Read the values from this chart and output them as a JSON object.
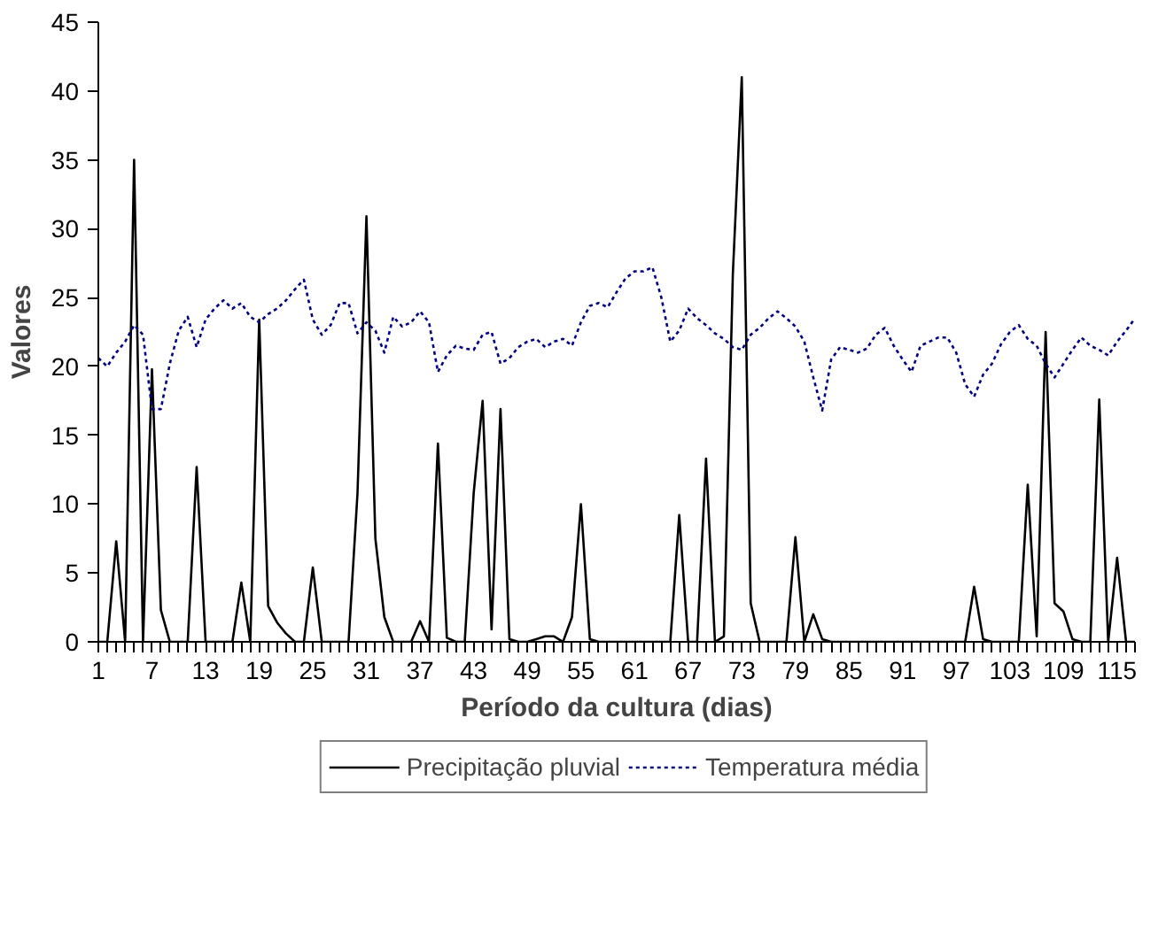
{
  "chart_data": {
    "type": "line",
    "xlabel": "Período da cultura (dias)",
    "ylabel": "Valores",
    "categories": [
      "1",
      null,
      null,
      null,
      null,
      null,
      "7",
      null,
      null,
      null,
      null,
      null,
      "13",
      null,
      null,
      null,
      null,
      null,
      "19",
      null,
      null,
      null,
      null,
      null,
      "25",
      null,
      null,
      null,
      null,
      null,
      "31",
      null,
      null,
      null,
      null,
      null,
      "37",
      null,
      null,
      null,
      null,
      null,
      "43",
      null,
      null,
      null,
      null,
      null,
      "49",
      null,
      null,
      null,
      null,
      null,
      "55",
      null,
      null,
      null,
      null,
      null,
      "61",
      null,
      null,
      null,
      null,
      null,
      "67",
      null,
      null,
      null,
      null,
      null,
      "73",
      null,
      null,
      null,
      null,
      null,
      "79",
      null,
      null,
      null,
      null,
      null,
      "85",
      null,
      null,
      null,
      null,
      null,
      "91",
      null,
      null,
      null,
      null,
      null,
      "97",
      null,
      null,
      null,
      null,
      null,
      "103",
      null,
      null,
      null,
      null,
      null,
      "109",
      null,
      null,
      null,
      null,
      null,
      "115",
      null,
      null
    ],
    "series": [
      {
        "name": "Precipitação pluvial",
        "color": "#000000",
        "line_style": "solid",
        "values": [
          0,
          0,
          7.3,
          0,
          35,
          0,
          19.8,
          2.3,
          0,
          0,
          0,
          12.7,
          0,
          0,
          0,
          0,
          4.3,
          0,
          23.4,
          2.6,
          1.4,
          0.6,
          0,
          0,
          5.4,
          0,
          0,
          0,
          0,
          10.8,
          30.9,
          7.5,
          1.8,
          0,
          0,
          0,
          1.5,
          0,
          14.4,
          0.3,
          0,
          0,
          10.8,
          17.5,
          0.9,
          16.9,
          0.2,
          0,
          0,
          0.2,
          0.4,
          0.4,
          0,
          1.8,
          10,
          0.2,
          0,
          0,
          0,
          0,
          0,
          0,
          0,
          0,
          0,
          9.2,
          0,
          0,
          13.3,
          0,
          0.4,
          26.7,
          41,
          2.8,
          0,
          0,
          0,
          0,
          7.6,
          0,
          2,
          0.2,
          0,
          0,
          0,
          0,
          0,
          0,
          0,
          0,
          0,
          0,
          0,
          0,
          0,
          0,
          0,
          0,
          4,
          0.2,
          0,
          0,
          0,
          0,
          11.4,
          0.4,
          22.5,
          2.8,
          2.2,
          0.2,
          0,
          0,
          17.6,
          0,
          6.1,
          0,
          0
        ]
      },
      {
        "name": "Temperatura média",
        "color": "#000080",
        "line_style": "dashed",
        "values": [
          20.6,
          20.0,
          21.0,
          21.8,
          23.0,
          22.3,
          16.9,
          16.9,
          20.2,
          22.6,
          23.6,
          21.4,
          23.4,
          24.2,
          24.8,
          24.2,
          24.6,
          23.6,
          23.2,
          23.8,
          24.2,
          24.8,
          25.6,
          26.3,
          23.4,
          22.3,
          23.0,
          24.6,
          24.6,
          22.4,
          23.2,
          22.6,
          21.0,
          23.6,
          22.9,
          23.2,
          24.0,
          23.2,
          19.6,
          20.8,
          21.5,
          21.3,
          21.2,
          22.3,
          22.5,
          20.2,
          20.6,
          21.4,
          21.8,
          22.0,
          21.4,
          21.8,
          22.0,
          21.5,
          23.2,
          24.4,
          24.6,
          24.3,
          25.4,
          26.4,
          26.9,
          26.9,
          27.2,
          25.0,
          21.8,
          22.6,
          24.2,
          23.5,
          23.0,
          22.4,
          22.0,
          21.4,
          21.2,
          22.3,
          22.8,
          23.5,
          24.0,
          23.5,
          22.9,
          21.8,
          19.2,
          16.8,
          20.5,
          21.4,
          21.2,
          21.0,
          21.3,
          22.3,
          22.8,
          21.5,
          20.5,
          19.6,
          21.5,
          21.8,
          22.1,
          22.1,
          21.0,
          18.7,
          17.8,
          19.4,
          20.2,
          21.6,
          22.5,
          23.0,
          22.0,
          21.5,
          20.2,
          19.2,
          20.2,
          21.2,
          22.1,
          21.5,
          21.2,
          20.8,
          21.8,
          22.6,
          23.5
        ]
      }
    ],
    "ylim": [
      0,
      45
    ],
    "yticks": [
      0,
      5,
      10,
      15,
      20,
      25,
      30,
      35,
      40,
      45
    ],
    "grid": false,
    "legend": "bottom"
  }
}
